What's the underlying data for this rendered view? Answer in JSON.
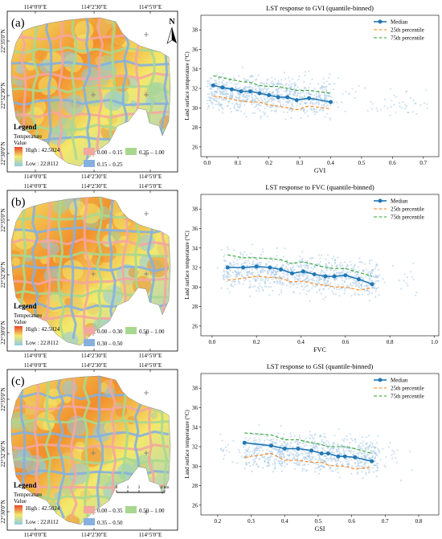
{
  "colors": {
    "median": "#1f77b4",
    "p25": "#ff7f0e",
    "p75": "#2ca02c",
    "scatter": "#a6c8e6",
    "map_high": "#f28e2b",
    "map_mid": "#f3e96b",
    "map_low": "#8ecae6",
    "road_a": "#f4a6a0",
    "road_b": "#a8d890",
    "road_c": "#86b0de"
  },
  "maps": [
    {
      "letter": "(a)",
      "north": "N",
      "lon_ticks": [
        "114°0'0\"E",
        "114°2'30\"E",
        "114°5'0\"E"
      ],
      "lat_ticks": [
        "22°35'0\"N",
        "22°32'30\"N",
        "22°30'0\"N"
      ],
      "legend_title": "Legend",
      "legend_sub1": "Temperature",
      "legend_sub2": "Value",
      "high": "High : 42.5024",
      "low": "Low : 22.8112",
      "classes": [
        "0.00 – 0.15",
        "0.25 – 1.00",
        "0.15 – 0.25"
      ],
      "scalebar": null
    },
    {
      "letter": "(b)",
      "north": "",
      "lon_ticks": [
        "114°0'0\"E",
        "114°2'30\"E",
        "114°5'0\"E"
      ],
      "lat_ticks": [
        "22°35'0\"N",
        "22°32'30\"N",
        "22°30'0\"N"
      ],
      "legend_title": "Legend",
      "legend_sub1": "Temperature",
      "legend_sub2": "Value",
      "high": "High : 42.5024",
      "low": "Low : 22.8112",
      "classes": [
        "0.00 – 0.30",
        "0.50 – 1.00",
        "0.30 – 0.50"
      ],
      "scalebar": null
    },
    {
      "letter": "(c)",
      "north": "",
      "lon_ticks": [
        "114°0'0\"E",
        "114°2'30\"E",
        "114°5'0\"E"
      ],
      "lat_ticks": [
        "22°35'0\"N",
        "22°32'30\"N",
        "22°30'0\"N"
      ],
      "legend_title": "Legend",
      "legend_sub1": "Temperature",
      "legend_sub2": "Value",
      "high": "High : 42.5024",
      "low": "Low : 22.8112",
      "classes": [
        "0.00 – 0.35",
        "0.50 – 1.00",
        "0.35 – 0.50"
      ],
      "scalebar": {
        "labels": [
          "0",
          "1",
          "2",
          "4 km"
        ]
      }
    }
  ],
  "chart_data": [
    {
      "type": "scatter",
      "title": "LST response to GVI (quantile-binned)",
      "xlabel": "GVI",
      "ylabel": "Land surface temperature (°C)",
      "xlim": [
        -0.02,
        0.75
      ],
      "ylim": [
        25,
        39.5
      ],
      "xticks": [
        0.0,
        0.1,
        0.2,
        0.3,
        0.4,
        0.5,
        0.6,
        0.7
      ],
      "yticks": [
        26,
        28,
        30,
        32,
        34,
        36,
        38
      ],
      "legend": {
        "position": "top-right",
        "entries": [
          "Median",
          "25th percentile",
          "75th percentile"
        ]
      },
      "scatter_cloud": {
        "x_range": [
          0.0,
          0.72
        ],
        "y_range": [
          27.5,
          34.5
        ],
        "dense_x_range": [
          0.0,
          0.4
        ],
        "center": 31.3
      },
      "series": [
        {
          "name": "Median",
          "x": [
            0.02,
            0.05,
            0.08,
            0.11,
            0.14,
            0.17,
            0.2,
            0.23,
            0.26,
            0.29,
            0.33,
            0.4
          ],
          "y": [
            32.3,
            32.1,
            31.9,
            31.7,
            31.7,
            31.5,
            31.3,
            31.1,
            31.1,
            30.8,
            31.0,
            30.6
          ]
        },
        {
          "name": "25th percentile",
          "x": [
            0.02,
            0.05,
            0.08,
            0.11,
            0.14,
            0.17,
            0.2,
            0.23,
            0.26,
            0.29,
            0.33,
            0.4
          ],
          "y": [
            31.2,
            31.1,
            30.9,
            30.7,
            30.6,
            30.6,
            30.3,
            30.2,
            30.0,
            29.8,
            30.2,
            29.9
          ]
        },
        {
          "name": "75th percentile",
          "x": [
            0.02,
            0.05,
            0.08,
            0.11,
            0.14,
            0.17,
            0.2,
            0.23,
            0.26,
            0.29,
            0.33,
            0.4
          ],
          "y": [
            33.3,
            33.1,
            32.9,
            32.7,
            32.6,
            32.3,
            32.2,
            32.2,
            32.0,
            31.8,
            31.8,
            31.5
          ]
        }
      ]
    },
    {
      "type": "scatter",
      "title": "LST response to FVC (quantile-binned)",
      "xlabel": "FVC",
      "ylabel": "Land surface temperature (°C)",
      "xlim": [
        -0.05,
        1.02
      ],
      "ylim": [
        25,
        39.5
      ],
      "xticks": [
        0.0,
        0.2,
        0.4,
        0.6,
        0.8,
        1.0
      ],
      "yticks": [
        26,
        28,
        30,
        32,
        34,
        36,
        38
      ],
      "legend": {
        "position": "top-right",
        "entries": [
          "Median",
          "25th percentile",
          "75th percentile"
        ]
      },
      "scatter_cloud": {
        "x_range": [
          0.02,
          0.92
        ],
        "y_range": [
          27.5,
          34.5
        ],
        "dense_x_range": [
          0.05,
          0.75
        ],
        "center": 31.3
      },
      "series": [
        {
          "name": "Median",
          "x": [
            0.07,
            0.14,
            0.2,
            0.26,
            0.31,
            0.36,
            0.41,
            0.46,
            0.51,
            0.55,
            0.6,
            0.66,
            0.72
          ],
          "y": [
            32.0,
            32.0,
            32.1,
            32.0,
            31.8,
            31.4,
            31.6,
            31.3,
            31.1,
            31.1,
            31.2,
            30.8,
            30.3
          ]
        },
        {
          "name": "25th percentile",
          "x": [
            0.07,
            0.14,
            0.2,
            0.26,
            0.31,
            0.36,
            0.41,
            0.46,
            0.51,
            0.55,
            0.6,
            0.66,
            0.72
          ],
          "y": [
            30.7,
            30.9,
            31.1,
            31.0,
            30.9,
            30.5,
            30.6,
            30.3,
            30.2,
            30.0,
            30.0,
            29.7,
            29.9
          ]
        },
        {
          "name": "75th percentile",
          "x": [
            0.07,
            0.14,
            0.2,
            0.26,
            0.31,
            0.36,
            0.41,
            0.46,
            0.51,
            0.55,
            0.6,
            0.66,
            0.72
          ],
          "y": [
            33.3,
            33.0,
            33.0,
            32.9,
            32.8,
            32.4,
            32.6,
            32.3,
            32.0,
            31.9,
            31.9,
            31.5,
            31.1
          ]
        }
      ]
    },
    {
      "type": "scatter",
      "title": "LST response to GSI (quantile-binned)",
      "xlabel": "GSI",
      "ylabel": "Land surface temperature (°C)",
      "xlim": [
        0.15,
        0.86
      ],
      "ylim": [
        25,
        39.5
      ],
      "xticks": [
        0.2,
        0.3,
        0.4,
        0.5,
        0.6,
        0.7,
        0.8
      ],
      "yticks": [
        26,
        28,
        30,
        32,
        34,
        36,
        38
      ],
      "legend": {
        "position": "top-right",
        "entries": [
          "Median",
          "25th percentile",
          "75th percentile"
        ]
      },
      "scatter_cloud": {
        "x_range": [
          0.2,
          0.78
        ],
        "y_range": [
          27.5,
          34.5
        ],
        "dense_x_range": [
          0.28,
          0.68
        ],
        "center": 31.3
      },
      "series": [
        {
          "name": "Median",
          "x": [
            0.28,
            0.36,
            0.4,
            0.44,
            0.48,
            0.51,
            0.53,
            0.56,
            0.58,
            0.61,
            0.66
          ],
          "y": [
            32.4,
            32.1,
            31.8,
            31.8,
            31.6,
            31.3,
            31.3,
            31.0,
            31.0,
            30.9,
            30.5
          ]
        },
        {
          "name": "25th percentile",
          "x": [
            0.28,
            0.36,
            0.4,
            0.44,
            0.48,
            0.51,
            0.53,
            0.56,
            0.58,
            0.61,
            0.66
          ],
          "y": [
            30.9,
            31.3,
            30.6,
            30.6,
            30.4,
            30.4,
            30.1,
            30.0,
            30.0,
            29.7,
            29.9
          ]
        },
        {
          "name": "75th percentile",
          "x": [
            0.28,
            0.36,
            0.4,
            0.44,
            0.48,
            0.51,
            0.53,
            0.56,
            0.58,
            0.61,
            0.66
          ],
          "y": [
            33.4,
            33.2,
            32.7,
            32.7,
            32.4,
            32.2,
            32.0,
            32.0,
            32.0,
            31.8,
            31.3
          ]
        }
      ]
    }
  ]
}
